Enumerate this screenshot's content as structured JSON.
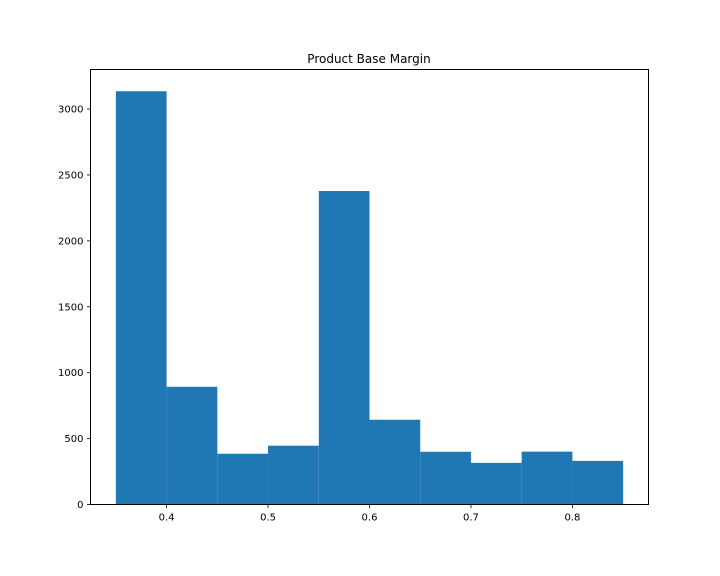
{
  "chart_data": {
    "type": "bar",
    "title": "Product Base Margin",
    "xlabel": "",
    "ylabel": "",
    "bin_edges": [
      0.35,
      0.4,
      0.45,
      0.5,
      0.55,
      0.6,
      0.65,
      0.7,
      0.75,
      0.8,
      0.85
    ],
    "values": [
      3135,
      893,
      385,
      446,
      2378,
      643,
      400,
      316,
      401,
      331
    ],
    "xlim": [
      0.325,
      0.875
    ],
    "ylim": [
      0,
      3300
    ],
    "x_ticks": [
      0.4,
      0.5,
      0.6,
      0.7,
      0.8
    ],
    "x_tick_labels": [
      "0.4",
      "0.5",
      "0.6",
      "0.7",
      "0.8"
    ],
    "y_ticks": [
      0,
      500,
      1000,
      1500,
      2000,
      2500,
      3000
    ],
    "y_tick_labels": [
      "0",
      "500",
      "1000",
      "1500",
      "2000",
      "2500",
      "3000"
    ],
    "bar_color": "#1f77b4",
    "grid": false,
    "legend": "none"
  }
}
